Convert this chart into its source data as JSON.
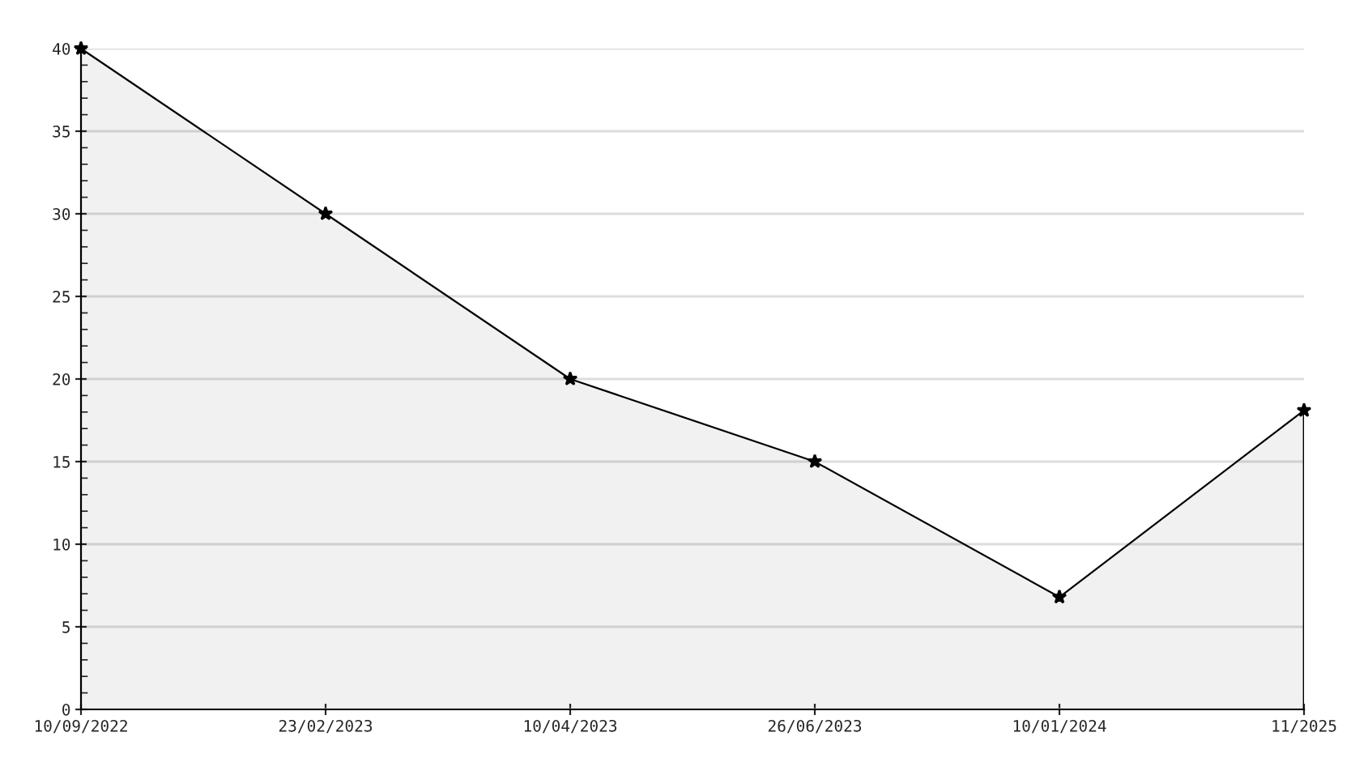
{
  "chart_data": {
    "type": "area",
    "categories": [
      "10/09/2022",
      "23/02/2023",
      "10/04/2023",
      "26/06/2023",
      "10/01/2024",
      "11/2025"
    ],
    "series": [
      {
        "color": "#000000",
        "values": [
          40,
          30,
          20,
          15,
          6.8,
          18.1
        ]
      }
    ],
    "ylim": [
      0,
      40
    ],
    "yticks": [
      0,
      5,
      10,
      15,
      20,
      25,
      30,
      35,
      40
    ],
    "grid": "y",
    "marker": "star",
    "line_style": "solid",
    "legend": false
  }
}
